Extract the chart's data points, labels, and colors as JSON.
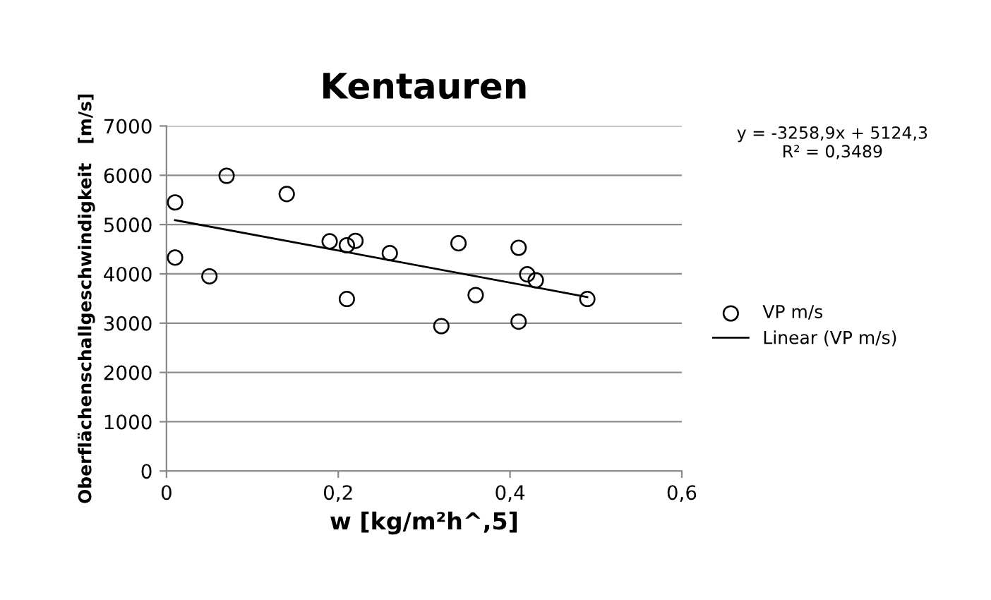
{
  "chart_data": {
    "type": "scatter",
    "title": "Kentauren",
    "xlabel": "w [kg/m²h^,5]",
    "ylabel": "Oberflächenschallgeschwindigkeit   [m/s]",
    "annotations": [
      "y = -3258,9x + 5124,3\nR² = 0,3489"
    ],
    "series": [
      {
        "name": "VP m/s",
        "color": "#000000",
        "marker": "circle",
        "x": [
          0.01,
          0.01,
          0.07,
          0.05,
          0.14,
          0.19,
          0.21,
          0.22,
          0.21,
          0.26,
          0.34,
          0.32,
          0.36,
          0.41,
          0.41,
          0.42,
          0.43,
          0.49
        ],
        "values": [
          5450,
          4330,
          5990,
          3950,
          5620,
          4660,
          4580,
          4670,
          3490,
          4420,
          4620,
          2940,
          3570,
          4530,
          3030,
          3990,
          3870,
          3490
        ]
      },
      {
        "name": "Linear (VP m/s)",
        "type": "line",
        "color": "#000000",
        "marker": "none",
        "line_style": "solid",
        "x": [
          0.01,
          0.49
        ],
        "values": [
          5090,
          3530
        ]
      }
    ],
    "xlim": [
      0,
      0.6
    ],
    "xticks": [
      0,
      {
        "value": 0.2,
        "label": "0,2"
      },
      {
        "value": 0.4,
        "label": "0,4"
      },
      {
        "value": 0.6,
        "label": "0,6"
      }
    ],
    "ylim": [
      0,
      7000
    ],
    "yticks": [
      0,
      1000,
      2000,
      3000,
      4000,
      5000,
      6000,
      7000
    ],
    "grid": "y",
    "legend": "right"
  }
}
